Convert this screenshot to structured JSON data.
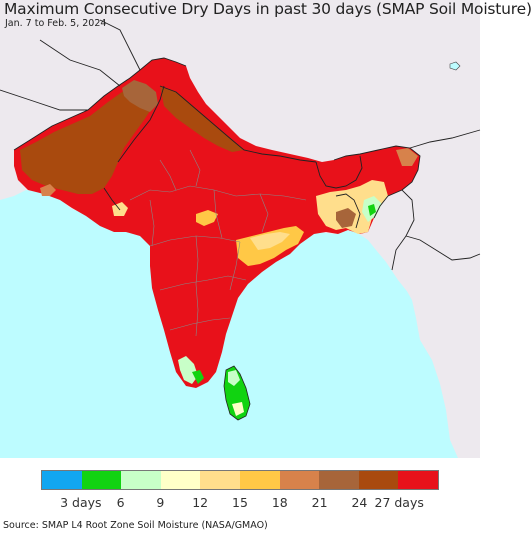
{
  "title": "Maximum Consecutive Dry Days in past 30 days (SMAP Soil Moisture)",
  "subtitle": "Jan. 7 to Feb. 5, 2024",
  "source": "Source: SMAP L4 Root Zone Soil Moisture (NASA/GMAO)",
  "colors": {
    "ocean": "#bdfcff",
    "land_outside": "#ede9ee",
    "border": "#222222",
    "state_border": "#888888"
  },
  "legend": {
    "colors": [
      "#11a6f0",
      "#11d311",
      "#c8ffc8",
      "#ffffc8",
      "#ffde8c",
      "#ffc846",
      "#d7824b",
      "#a7653a",
      "#a94a0e",
      "#e8111a"
    ],
    "ticks": [
      {
        "label": "3 days"
      },
      {
        "label": "6"
      },
      {
        "label": "9"
      },
      {
        "label": "12"
      },
      {
        "label": "15"
      },
      {
        "label": "18"
      },
      {
        "label": "21"
      },
      {
        "label": "24"
      },
      {
        "label": "27 days"
      }
    ]
  }
}
